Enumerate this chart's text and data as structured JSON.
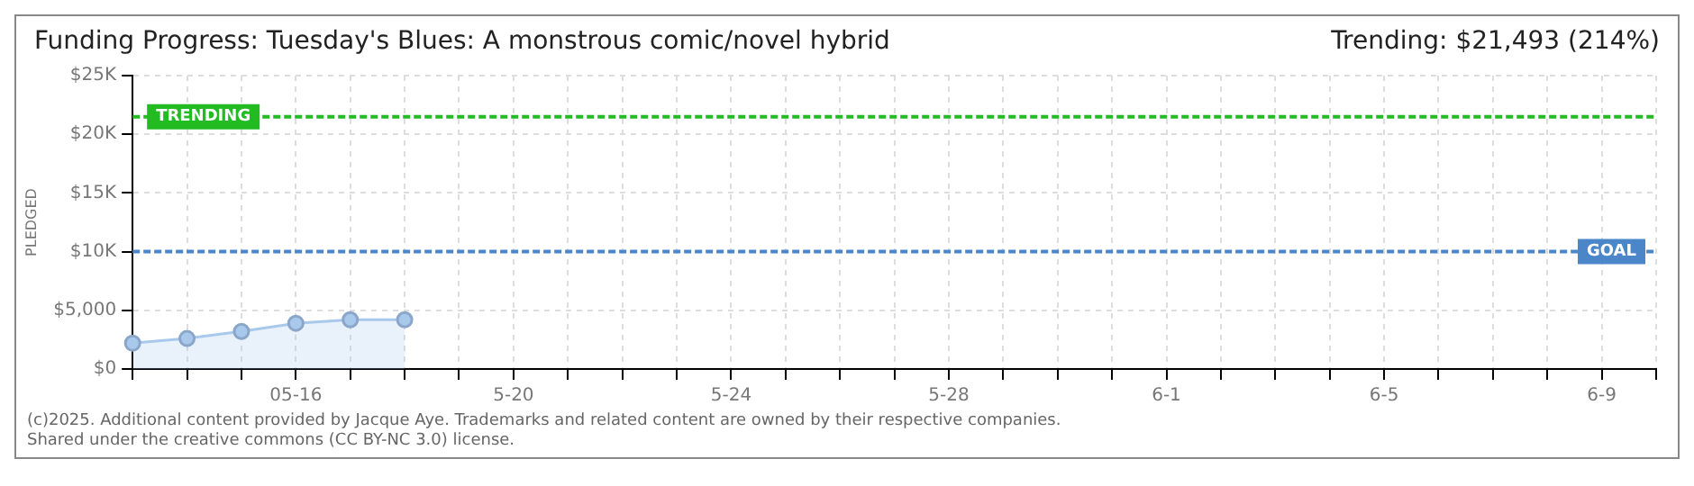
{
  "chart_data": {
    "type": "area",
    "title": "Funding Progress: Tuesday's Blues: A monstrous comic/novel hybrid",
    "subtitle": "Trending: $21,493 (214%)",
    "ylabel": "PLEDGED",
    "categories": [
      null,
      null,
      null,
      "05-16",
      null,
      null,
      null,
      "5-20",
      null,
      null,
      null,
      "5-24",
      null,
      null,
      null,
      "5-28",
      null,
      null,
      null,
      "6-1",
      null,
      null,
      null,
      "6-5",
      null,
      null,
      null,
      "6-9",
      null
    ],
    "series": [
      {
        "color": "#a9c9ec",
        "values": [
          2200,
          2600,
          3200,
          3900,
          4200,
          4200,
          null,
          null,
          null,
          null,
          null,
          null,
          null,
          null,
          null,
          null,
          null,
          null,
          null,
          null,
          null,
          null,
          null,
          null,
          null,
          null,
          null,
          null,
          null
        ]
      }
    ],
    "ylim": [
      0,
      25000
    ],
    "yticks": [
      {
        "value": 0,
        "label": "$0"
      },
      {
        "value": 5000,
        "label": "$5,000"
      },
      {
        "value": 10000,
        "label": "$10K"
      },
      {
        "value": 15000,
        "label": "$15K"
      },
      {
        "value": 20000,
        "label": "$20K"
      },
      {
        "value": 25000,
        "label": "$25K"
      }
    ],
    "ref_lines": [
      {
        "axis": "y",
        "value": 21493,
        "label": "TRENDING",
        "color": "#22bb22",
        "line_style": "dashed"
      },
      {
        "axis": "y",
        "value": 10000,
        "label": "GOAL",
        "color": "#4a86c8",
        "line_style": "dashed"
      }
    ],
    "grid": true,
    "marker": "circle",
    "legend": false,
    "annotations": [
      "(c)2025. Additional content provided by Jacque Aye. Trademarks and related content are owned by their respective companies.",
      "Shared under the creative commons (CC BY-NC 3.0) license."
    ]
  }
}
